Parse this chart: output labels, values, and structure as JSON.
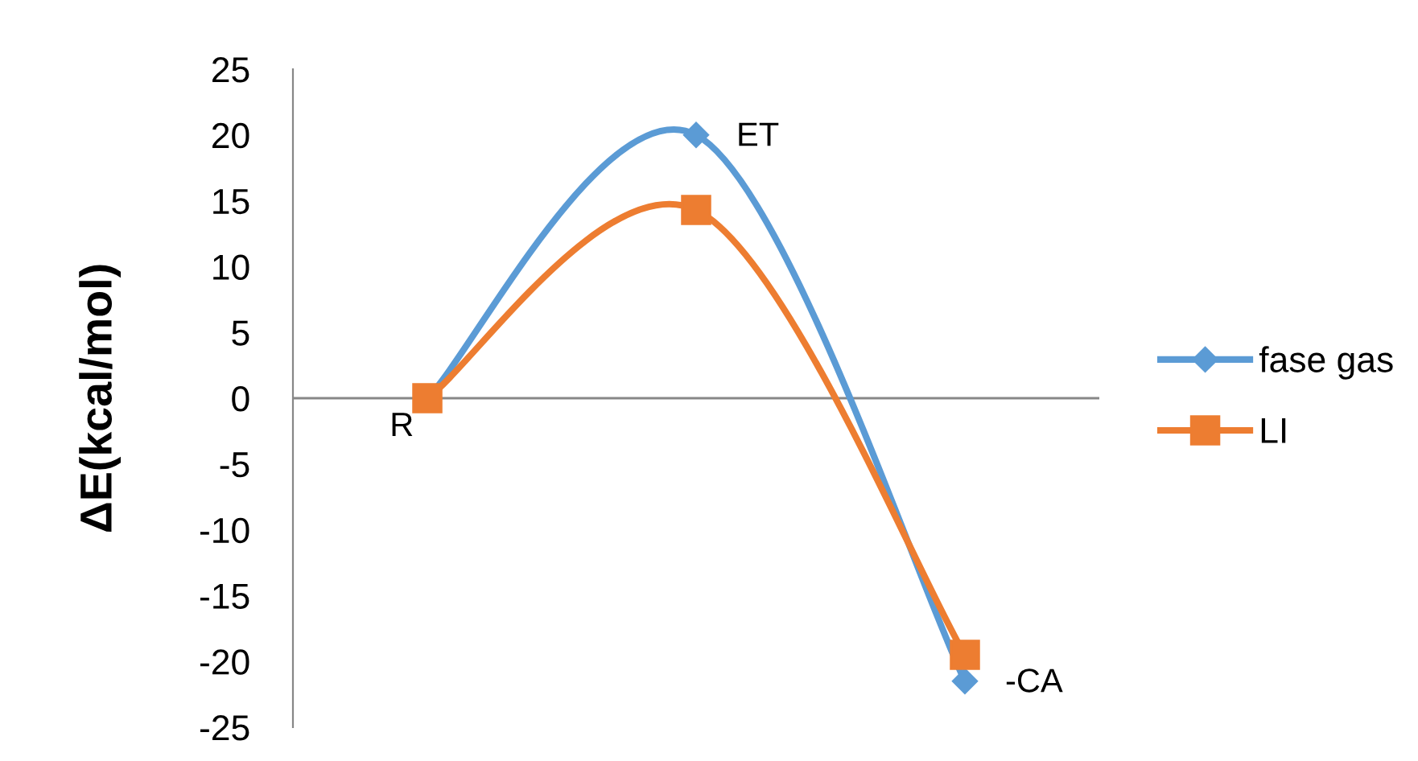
{
  "chart_data": {
    "type": "line",
    "ylabel": "ΔE(kcal/mol)",
    "categories": [
      null,
      null,
      null
    ],
    "series": [
      {
        "name": "fase gas",
        "color": "#5b9bd5",
        "marker": "diamond",
        "values": [
          0,
          20,
          -21.5
        ]
      },
      {
        "name": "LI",
        "color": "#ed7d31",
        "marker": "square",
        "values": [
          0,
          14.3,
          -19.5
        ]
      }
    ],
    "annotations": [
      "R",
      "ET",
      "-CA"
    ],
    "ref_lines": [
      {
        "axis": "y",
        "value": 0,
        "color": "#878787"
      }
    ],
    "ylim": [
      -25,
      25
    ],
    "yticks": [
      -25,
      -20,
      -15,
      -10,
      -5,
      0,
      5,
      10,
      15,
      20,
      25
    ],
    "legend": "right",
    "tick_labels": "y",
    "grid": false,
    "line_style": "solid"
  }
}
